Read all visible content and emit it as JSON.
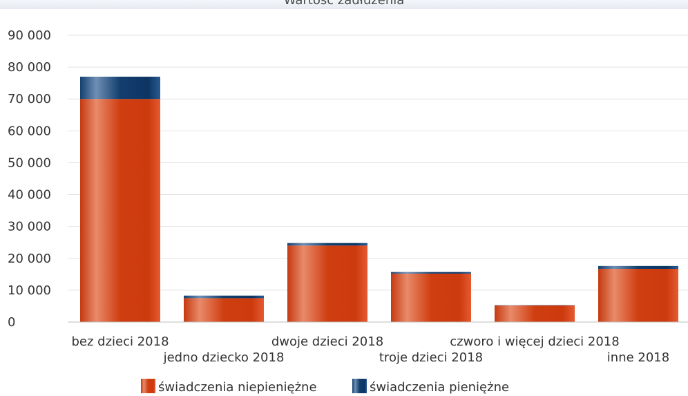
{
  "chart_data": {
    "type": "bar",
    "stacked": true,
    "title": "Wartość zadłużenia",
    "categories": [
      "bez dzieci 2018",
      "jedno dziecko 2018",
      "dwoje dzieci 2018",
      "troje dzieci 2018",
      "czworo i więcej dzieci 2018",
      "inne 2018"
    ],
    "series": [
      {
        "name": "świadczenia niepieniężne",
        "values": [
          70000,
          7500,
          24000,
          15200,
          5200,
          16700
        ],
        "color": "#cc3a10"
      },
      {
        "name": "świadczenia pieniężne",
        "values": [
          7000,
          800,
          800,
          500,
          100,
          900
        ],
        "color": "#0e3a6e"
      }
    ],
    "ylim": [
      0,
      90000
    ],
    "yticks": [
      "0",
      "10 000",
      "20 000",
      "30 000",
      "40 000",
      "50 000",
      "60 000",
      "70 000",
      "80 000",
      "90 000"
    ],
    "ytick_values": [
      0,
      10000,
      20000,
      30000,
      40000,
      50000,
      60000,
      70000,
      80000,
      90000
    ],
    "grid": true,
    "legend_position": "bottom"
  }
}
